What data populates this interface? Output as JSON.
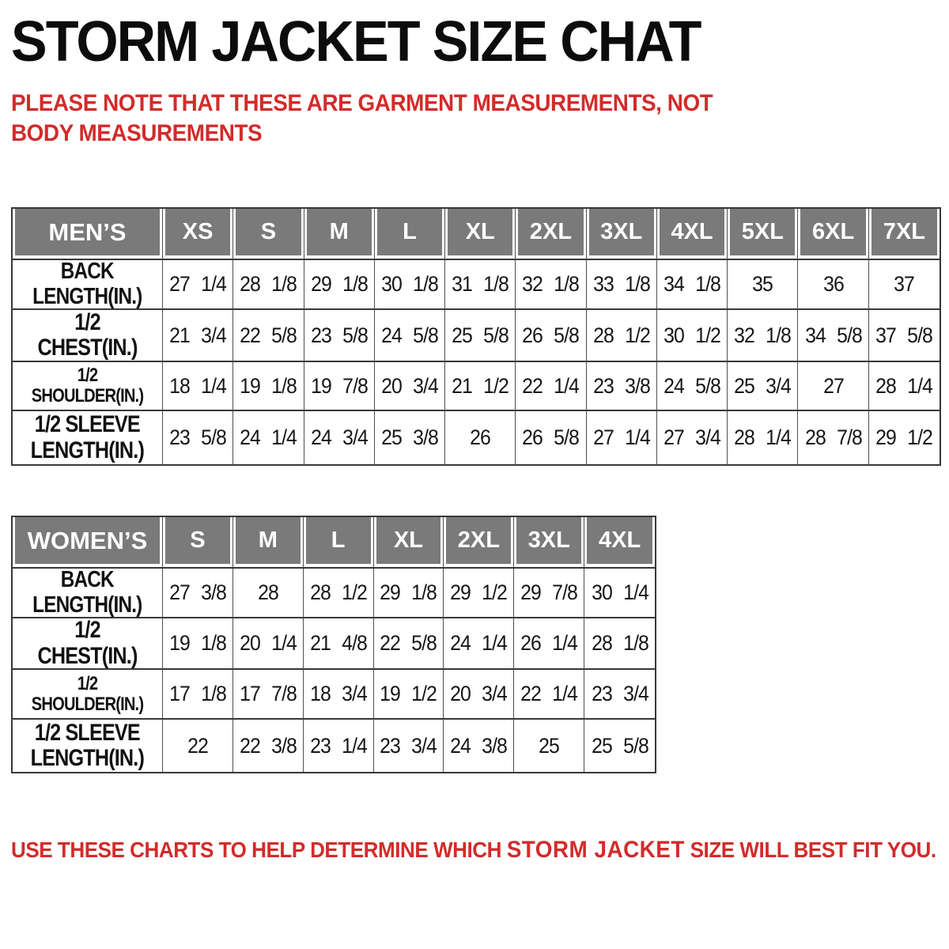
{
  "page": {
    "title": "STORM JACKET SIZE CHAT",
    "note": "PLEASE NOTE THAT THESE ARE GARMENT MEASUREMENTS, NOT BODY MEASUREMENTS",
    "footer": {
      "part1": "USE THESE CHARTS TO HELP DETERMINE WHICH ",
      "brand": "STORM JACKET",
      "part2": "  SIZE WILL BEST FIT YOU."
    }
  },
  "colors": {
    "header_bg": "#7a7a7a",
    "header_text": "#ffffff",
    "accent_red": "#d32b2b",
    "title_black": "#0c0c0c",
    "border_dark": "#383838"
  },
  "mens_table": {
    "group_label": "MEN’S",
    "size_headers": [
      "XS",
      "S",
      "M",
      "L",
      "XL",
      "2XL",
      "3XL",
      "4XL",
      "5XL",
      "6XL",
      "7XL"
    ],
    "rows": [
      {
        "label": "BACK\nLENGTH(IN.)",
        "values": [
          "27 1/4",
          "28 1/8",
          "29 1/8",
          "30 1/8",
          "31 1/8",
          "32 1/8",
          "33 1/8",
          "34 1/8",
          "35",
          "36",
          "37"
        ]
      },
      {
        "label": "1/2 CHEST(IN.)",
        "values": [
          "21 3/4",
          "22 5/8",
          "23 5/8",
          "24 5/8",
          "25 5/8",
          "26 5/8",
          "28 1/2",
          "30 1/2",
          "32 1/8",
          "34 5/8",
          "37 5/8"
        ]
      },
      {
        "label": "1/2 SHOULDER(IN.)",
        "values": [
          "18 1/4",
          "19 1/8",
          "19 7/8",
          "20 3/4",
          "21 1/2",
          "22 1/4",
          "23 3/8",
          "24 5/8",
          "25 3/4",
          "27",
          "28 1/4"
        ]
      },
      {
        "label": "1/2 SLEEVE\nLENGTH(IN.)",
        "values": [
          "23 5/8",
          "24 1/4",
          "24 3/4",
          "25 3/8",
          "26",
          "26 5/8",
          "27 1/4",
          "27 3/4",
          "28 1/4",
          "28 7/8",
          "29 1/2"
        ]
      }
    ]
  },
  "womens_table": {
    "group_label": "WOMEN’S",
    "size_headers": [
      "S",
      "M",
      "L",
      "XL",
      "2XL",
      "3XL",
      "4XL"
    ],
    "rows": [
      {
        "label": "BACK\nLENGTH(IN.)",
        "values": [
          "27 3/8",
          "28",
          "28 1/2",
          "29 1/8",
          "29 1/2",
          "29 7/8",
          "30 1/4"
        ]
      },
      {
        "label": "1/2 CHEST(IN.)",
        "values": [
          "19 1/8",
          "20 1/4",
          "21 4/8",
          "22 5/8",
          "24 1/4",
          "26 1/4",
          "28 1/8"
        ]
      },
      {
        "label": "1/2 SHOULDER(IN.)",
        "values": [
          "17 1/8",
          "17 7/8",
          "18 3/4",
          "19 1/2",
          "20 3/4",
          "22 1/4",
          "23 3/4"
        ]
      },
      {
        "label": "1/2 SLEEVE\nLENGTH(IN.)",
        "values": [
          "22",
          "22 3/8",
          "23 1/4",
          "23 3/4",
          "24 3/8",
          "25",
          "25 5/8"
        ]
      }
    ]
  }
}
